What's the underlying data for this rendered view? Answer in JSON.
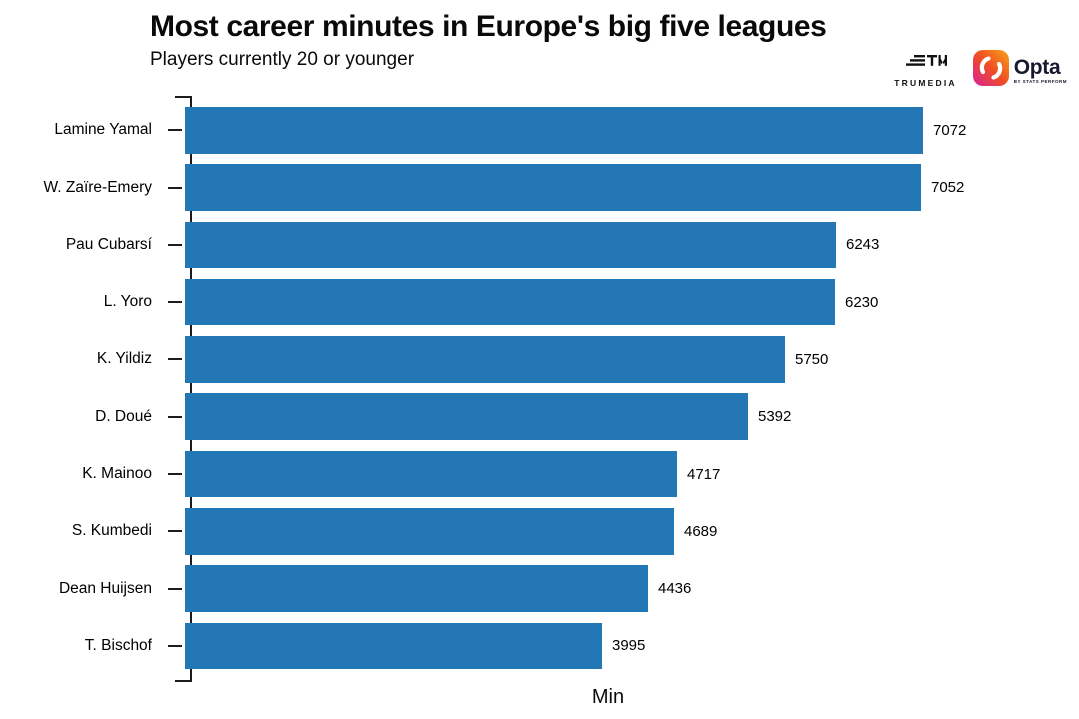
{
  "header": {
    "title": "Most career minutes in Europe's big five leagues",
    "subtitle": "Players currently 20 or younger"
  },
  "logos": {
    "trumedia_label": "TRUMEDIA",
    "opta_label": "Opta",
    "opta_sublabel": "BY STATS PERFORM"
  },
  "chart_data": {
    "type": "bar",
    "orientation": "horizontal",
    "title": "Most career minutes in Europe's big five leagues",
    "subtitle": "Players currently 20 or younger",
    "xlabel": "Min",
    "ylabel": "",
    "categories": [
      "Lamine Yamal",
      "W. Zaïre-Emery",
      "Pau Cubarsí",
      "L. Yoro",
      "K. Yildiz",
      "D. Doué",
      "K. Mainoo",
      "S. Kumbedi",
      "Dean Huijsen",
      "T. Bischof"
    ],
    "values": [
      7072,
      7052,
      6243,
      6230,
      5750,
      5392,
      4717,
      4689,
      4436,
      3995
    ],
    "value_labels_shown": true,
    "sorted": "descending",
    "grid": false,
    "x_tick_labels": [],
    "bar_color": "#2277b4",
    "axis_color": "#1c1c1c",
    "xlim": [
      0,
      7400
    ]
  }
}
